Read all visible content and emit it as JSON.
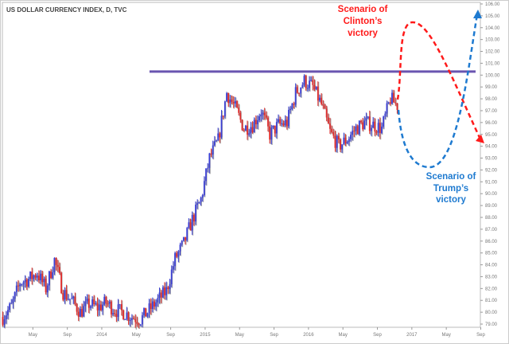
{
  "chart_data": {
    "type": "candlestick",
    "title": "US DOLLAR CURRENCY INDEX, D, TVC",
    "xlabel": "",
    "ylabel": "",
    "ylim": [
      78.5,
      106.1
    ],
    "grid": false,
    "start_month": "2013-01",
    "monthly_closes": [
      79.6,
      80.5,
      82.5,
      82.8,
      83.3,
      82.0,
      84.4,
      81.7,
      81.0,
      80.0,
      80.7,
      80.4,
      80.8,
      80.2,
      80.0,
      79.6,
      79.4,
      80.2,
      81.0,
      81.8,
      84.5,
      85.8,
      87.8,
      89.5,
      93.0,
      94.5,
      98.5,
      97.2,
      95.5,
      95.8,
      97.0,
      95.0,
      95.8,
      96.0,
      98.5,
      99.5,
      99.0,
      97.5,
      95.2,
      94.0,
      94.6,
      95.5,
      96.0,
      95.8,
      95.5,
      98.0,
      97.3
    ],
    "resistance_level": 100.3,
    "y_ticks": [
      "106.00",
      "105.00",
      "104.00",
      "103.00",
      "102.00",
      "101.00",
      "100.00",
      "99.00",
      "98.00",
      "97.00",
      "96.00",
      "95.00",
      "94.00",
      "93.00",
      "92.00",
      "91.00",
      "90.00",
      "89.00",
      "88.00",
      "87.00",
      "86.00",
      "85.00",
      "84.00",
      "83.00",
      "82.00",
      "81.00",
      "80.00",
      "79.00"
    ],
    "x_ticks": [
      {
        "label": "May",
        "month": 4
      },
      {
        "label": "Sep",
        "month": 8
      },
      {
        "label": "2014",
        "month": 12
      },
      {
        "label": "May",
        "month": 16
      },
      {
        "label": "Sep",
        "month": 20
      },
      {
        "label": "2015",
        "month": 24
      },
      {
        "label": "May",
        "month": 28
      },
      {
        "label": "Sep",
        "month": 32
      },
      {
        "label": "2016",
        "month": 36
      },
      {
        "label": "May",
        "month": 40
      },
      {
        "label": "Sep",
        "month": 44
      },
      {
        "label": "2017",
        "month": 48
      },
      {
        "label": "May",
        "month": 52
      },
      {
        "label": "Sep",
        "month": 56
      }
    ],
    "annotations": {
      "clinton": [
        "Scenario of",
        "Clinton’s",
        "victory"
      ],
      "trump": [
        "Scenario of",
        "Trump’s",
        "victory"
      ]
    },
    "colors": {
      "up": "#3b3fd6",
      "down": "#e02a2a",
      "resistance": "#6a55b0",
      "clinton": "#ff1a1a",
      "trump": "#1e7ad0"
    }
  }
}
